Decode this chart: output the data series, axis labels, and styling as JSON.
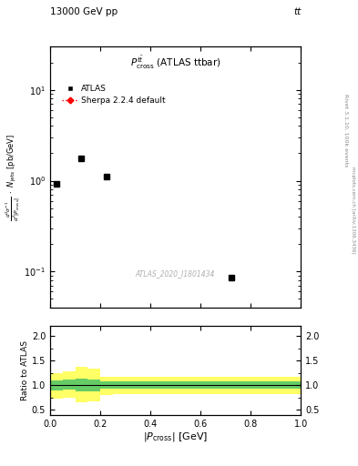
{
  "title_top": "13000 GeV pp",
  "title_top_right": "tt",
  "plot_title": "$P_{\\mathrm{cross}}^{t\\bar{t}}$ (ATLAS ttbar)",
  "xlabel": "$|P_{\\mathrm{cross}}|$ [GeV]",
  "ylabel_main": "$\\frac{d^2\\sigma^{-1}}{d^2|P_{\\mathrm{cross}}|} \\cdot N_{\\mathrm{jets}}$ [pb/GeV]",
  "ylabel_ratio": "Ratio to ATLAS",
  "right_label": "Rivet 3.1.10, 100k events",
  "right_label2": "mcplots.cern.ch [arXiv:1306.3436]",
  "watermark": "ATLAS_2020_I1801434",
  "data_x": [
    0.025,
    0.125,
    0.225,
    0.725
  ],
  "data_y": [
    0.92,
    1.75,
    1.1,
    0.085
  ],
  "xlim": [
    0,
    1.0
  ],
  "ylim_main_lo": 0.04,
  "ylim_main_hi": 30,
  "ylim_ratio_lo": 0.4,
  "ylim_ratio_hi": 2.2,
  "marker_color": "#000000",
  "sherpa_color": "#ff0000",
  "green_color": "#66cc66",
  "yellow_color": "#ffff66",
  "bin_edges": [
    0.0,
    0.05,
    0.1,
    0.15,
    0.2,
    0.25,
    0.3,
    1.0
  ],
  "yellow_lo": [
    0.72,
    0.75,
    0.65,
    0.68,
    0.8,
    0.82,
    0.82,
    0.82
  ],
  "yellow_hi": [
    1.25,
    1.28,
    1.38,
    1.33,
    1.18,
    1.18,
    1.18,
    1.18
  ],
  "green_lo": [
    0.9,
    0.92,
    0.88,
    0.88,
    0.93,
    0.93,
    0.93,
    0.93
  ],
  "green_hi": [
    1.1,
    1.12,
    1.14,
    1.12,
    1.08,
    1.08,
    1.08,
    1.08
  ]
}
